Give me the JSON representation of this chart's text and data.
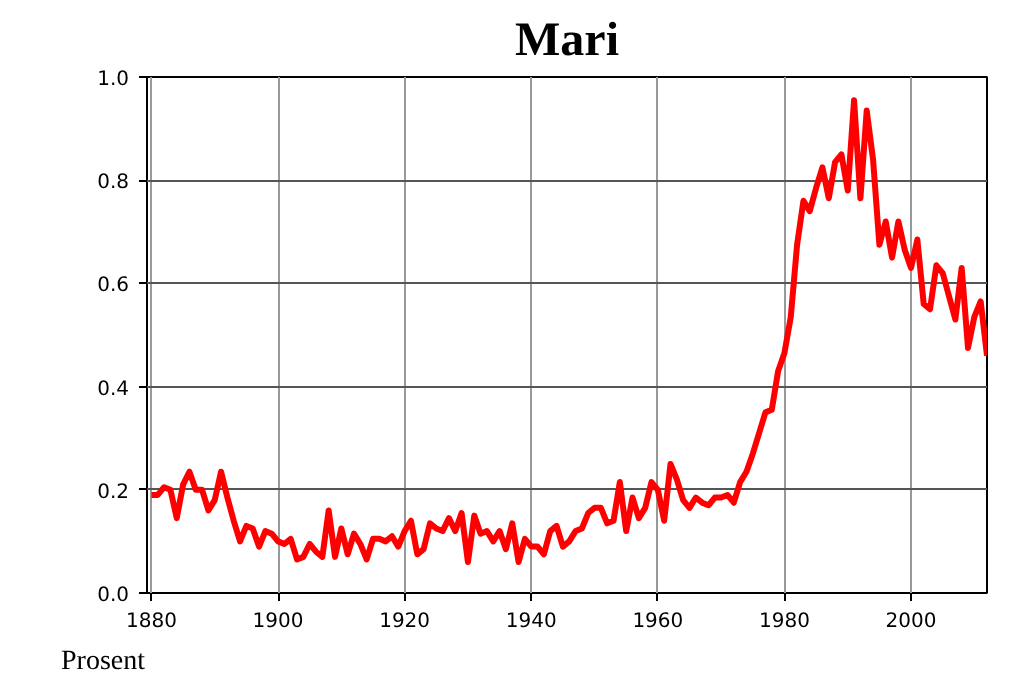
{
  "chart_data": {
    "type": "line",
    "title": "Mari",
    "ylabel": "Prosent",
    "x": [
      1880,
      1881,
      1882,
      1883,
      1884,
      1885,
      1886,
      1887,
      1888,
      1889,
      1890,
      1891,
      1892,
      1893,
      1894,
      1895,
      1896,
      1897,
      1898,
      1899,
      1900,
      1901,
      1902,
      1903,
      1904,
      1905,
      1906,
      1907,
      1908,
      1909,
      1910,
      1911,
      1912,
      1913,
      1914,
      1915,
      1916,
      1917,
      1918,
      1919,
      1920,
      1921,
      1922,
      1923,
      1924,
      1925,
      1926,
      1927,
      1928,
      1929,
      1930,
      1931,
      1932,
      1933,
      1934,
      1935,
      1936,
      1937,
      1938,
      1939,
      1940,
      1941,
      1942,
      1943,
      1944,
      1945,
      1946,
      1947,
      1948,
      1949,
      1950,
      1951,
      1952,
      1953,
      1954,
      1955,
      1956,
      1957,
      1958,
      1959,
      1960,
      1961,
      1962,
      1963,
      1964,
      1965,
      1966,
      1967,
      1968,
      1969,
      1970,
      1971,
      1972,
      1973,
      1974,
      1975,
      1976,
      1977,
      1978,
      1979,
      1980,
      1981,
      1982,
      1983,
      1984,
      1985,
      1986,
      1987,
      1988,
      1989,
      1990,
      1991,
      1992,
      1993,
      1994,
      1995,
      1996,
      1997,
      1998,
      1999,
      2000,
      2001,
      2002,
      2003,
      2004,
      2005,
      2006,
      2007,
      2008,
      2009,
      2010,
      2011,
      2012
    ],
    "series": [
      {
        "color": "#ff0000",
        "values": [
          0.19,
          0.19,
          0.205,
          0.2,
          0.145,
          0.21,
          0.235,
          0.2,
          0.2,
          0.16,
          0.18,
          0.235,
          0.185,
          0.14,
          0.1,
          0.13,
          0.125,
          0.09,
          0.12,
          0.115,
          0.1,
          0.095,
          0.105,
          0.065,
          0.07,
          0.095,
          0.08,
          0.07,
          0.16,
          0.07,
          0.125,
          0.075,
          0.115,
          0.095,
          0.065,
          0.105,
          0.105,
          0.1,
          0.11,
          0.09,
          0.12,
          0.14,
          0.075,
          0.085,
          0.135,
          0.125,
          0.12,
          0.145,
          0.12,
          0.155,
          0.06,
          0.15,
          0.115,
          0.12,
          0.1,
          0.12,
          0.085,
          0.135,
          0.06,
          0.105,
          0.09,
          0.09,
          0.075,
          0.12,
          0.13,
          0.09,
          0.1,
          0.12,
          0.125,
          0.155,
          0.165,
          0.165,
          0.135,
          0.14,
          0.215,
          0.12,
          0.185,
          0.145,
          0.165,
          0.215,
          0.2,
          0.14,
          0.25,
          0.22,
          0.18,
          0.165,
          0.185,
          0.175,
          0.17,
          0.185,
          0.185,
          0.19,
          0.175,
          0.215,
          0.235,
          0.27,
          0.31,
          0.35,
          0.355,
          0.43,
          0.465,
          0.535,
          0.675,
          0.76,
          0.74,
          0.785,
          0.825,
          0.765,
          0.835,
          0.85,
          0.78,
          0.955,
          0.765,
          0.935,
          0.84,
          0.675,
          0.72,
          0.65,
          0.72,
          0.665,
          0.63,
          0.685,
          0.56,
          0.55,
          0.635,
          0.62,
          0.575,
          0.53,
          0.63,
          0.475,
          0.535,
          0.565,
          0.46
        ]
      }
    ],
    "xlim": [
      1879.3,
      2012
    ],
    "ylim": [
      0,
      1
    ],
    "xticks": [
      1880,
      1900,
      1920,
      1940,
      1960,
      1980,
      2000
    ],
    "yticks": [
      {
        "value": 0,
        "label": "0.0"
      },
      {
        "value": 0.2,
        "label": "0.2"
      },
      {
        "value": 0.4,
        "label": "0.4"
      },
      {
        "value": 0.6,
        "label": "0.6"
      },
      {
        "value": 0.8,
        "label": "0.8"
      },
      {
        "value": 1,
        "label": "1.0"
      }
    ],
    "grid": true,
    "line_style": "solid"
  }
}
